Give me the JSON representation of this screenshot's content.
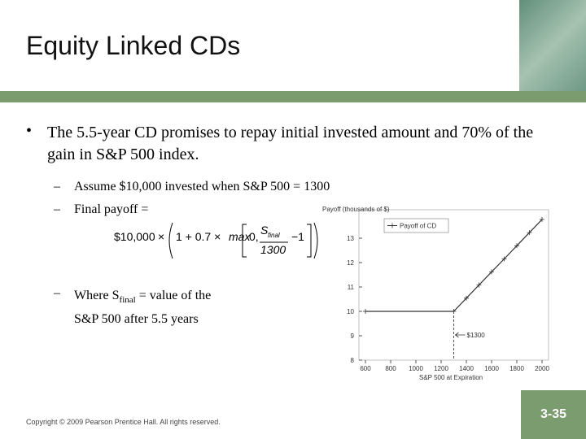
{
  "header": {
    "title": "Equity Linked CDs"
  },
  "bullets": [
    {
      "text": "The 5.5-year CD promises to repay initial invested amount and 70% of the gain in S&P 500 index.",
      "sub": [
        "Assume $10,000 invested when S&P 500 = 1300",
        "Final payoff ="
      ]
    }
  ],
  "formula": {
    "amount": "$10,000",
    "times": "×",
    "inner": "1 + 0.7 ×",
    "max": "max",
    "zero": "0,",
    "s": "S",
    "s_sub": "final",
    "denominator": "1300",
    "minus_one": "−1"
  },
  "where": {
    "prefix": "Where S",
    "sub": "final",
    "suffix": " = value of the",
    "line2": "S&P 500 after 5.5 years"
  },
  "footer": {
    "copyright": "Copyright © 2009 Pearson Prentice Hall. All rights reserved.",
    "page": "3-35"
  },
  "chart_data": {
    "type": "line",
    "title": "Payoff (thousands of $)",
    "x_label": "S&P 500 at Expiration",
    "x": [
      600,
      1300,
      1400,
      1500,
      1600,
      1700,
      1800,
      1900,
      2000
    ],
    "series": [
      {
        "name": "Payoff of CD",
        "color": "#333333",
        "values": [
          10,
          10,
          10.54,
          11.08,
          11.62,
          12.15,
          12.69,
          13.23,
          13.77
        ]
      }
    ],
    "xlim": [
      600,
      2000
    ],
    "xticks": [
      600,
      800,
      1000,
      1200,
      1400,
      1600,
      1800,
      2000
    ],
    "ylim": [
      8,
      14
    ],
    "yticks": [
      8,
      9,
      10,
      11,
      12,
      13
    ],
    "annotation": "$1300",
    "legend": "top-left"
  }
}
